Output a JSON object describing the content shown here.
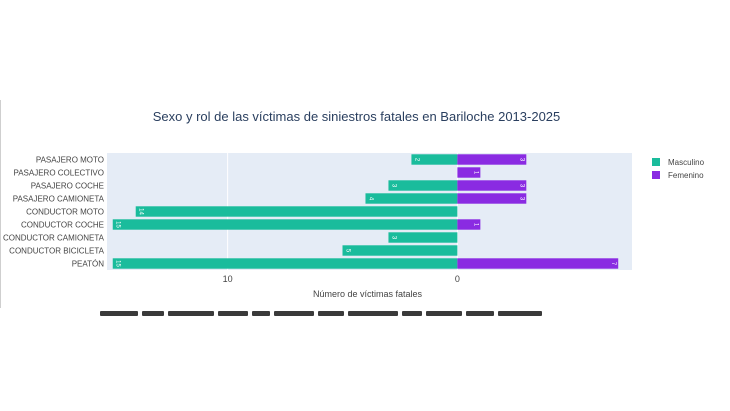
{
  "chart_data": {
    "type": "bar",
    "orientation": "horizontal",
    "barmode": "relative",
    "title": "Sexo y rol de las víctimas de siniestros fatales en Bariloche 2013-2025",
    "xlabel": "Número de víctimas fatales",
    "ylabel": "",
    "categories": [
      "PASAJERO MOTO",
      "PASAJERO COLECTIVO",
      "PASAJERO COCHE",
      "PASAJERO CAMIONETA",
      "CONDUCTOR MOTO",
      "CONDUCTOR COCHE",
      "CONDUCTOR CAMIONETA",
      "CONDUCTOR BICICLETA",
      "PEATÓN"
    ],
    "series": [
      {
        "name": "Masculino",
        "values": [
          2,
          0,
          3,
          4,
          14,
          15,
          3,
          5,
          15
        ],
        "labels": [
          "2",
          "",
          "3",
          "4",
          "14",
          "15",
          "3",
          "5",
          "15"
        ],
        "color": "#1abc9c"
      },
      {
        "name": "Femenino",
        "values": [
          3,
          1,
          3,
          3,
          0,
          1,
          0,
          0,
          7
        ],
        "labels": [
          "3",
          "1",
          "3",
          "3",
          "",
          "1",
          "",
          "",
          "7"
        ],
        "color": "#8a2be2"
      }
    ],
    "xticks": [
      {
        "value": -10,
        "label": "10"
      },
      {
        "value": 0,
        "label": "0"
      }
    ],
    "xlim": [
      -15.25,
      7.6
    ],
    "legend_position": "right",
    "grid": true
  }
}
